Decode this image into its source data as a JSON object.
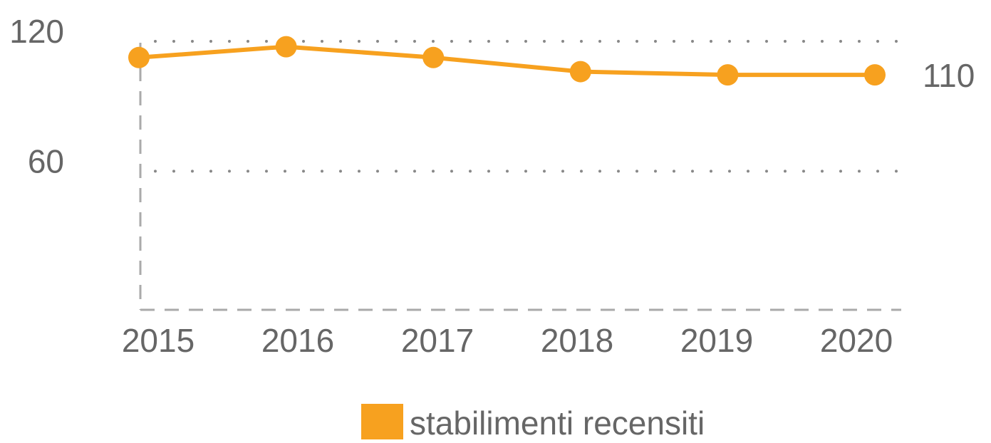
{
  "chart_data": {
    "type": "line",
    "categories": [
      "2015",
      "2016",
      "2017",
      "2018",
      "2019",
      "2020"
    ],
    "series": [
      {
        "name": "stabilimenti recensiti",
        "color": "#f7a11f",
        "values": [
          112.5,
          117.5,
          112.5,
          106,
          104.5,
          104.5
        ]
      }
    ],
    "ylim": [
      -4,
      120
    ],
    "yticks": [
      60,
      120
    ],
    "grid": true,
    "annotations": [
      "110"
    ],
    "legend": "bottom"
  }
}
